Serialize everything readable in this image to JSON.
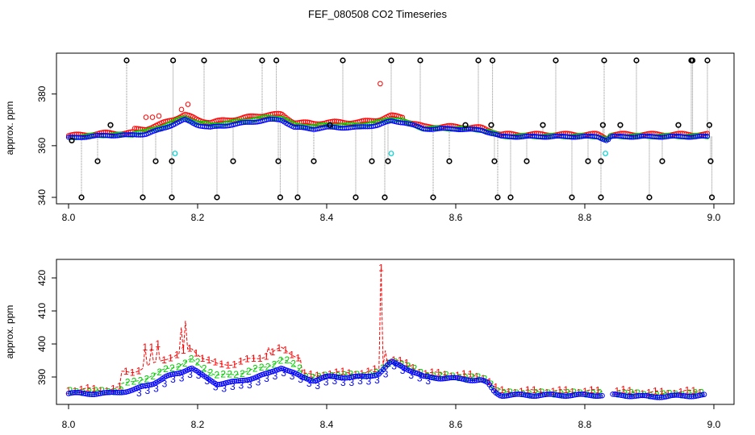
{
  "figure": {
    "title": "FEF_080508  CO2 Timeseries"
  },
  "colors": {
    "red": "#ff0000",
    "green": "#00cc00",
    "blue": "#0000ff",
    "black": "#000000",
    "cyan": "#00d0d0",
    "gray": "#888888"
  },
  "chart_data": [
    {
      "type": "scatter",
      "panel": "top",
      "ylabel": "approx. ppm",
      "xlim": [
        8.0,
        9.0
      ],
      "ylim": [
        336,
        397
      ],
      "x_ticks": [
        8.0,
        8.2,
        8.4,
        8.6,
        8.8,
        9.0
      ],
      "x_tick_labels": [
        "8.0",
        "8.2",
        "8.4",
        "8.6",
        "8.8",
        "9.0"
      ],
      "y_ticks": [
        340,
        360,
        380
      ],
      "y_tick_labels": [
        "340",
        "360",
        "380"
      ],
      "baseline_knots": {
        "x": [
          8.0,
          8.03,
          8.06,
          8.09,
          8.12,
          8.14,
          8.16,
          8.18,
          8.2,
          8.22,
          8.25,
          8.28,
          8.31,
          8.33,
          8.35,
          8.38,
          8.4,
          8.45,
          8.48,
          8.5,
          8.52,
          8.55,
          8.6,
          8.64,
          8.66,
          8.67,
          8.75,
          8.82,
          8.835,
          8.84,
          8.9,
          8.99
        ],
        "y": [
          363,
          363.5,
          364,
          364,
          364.5,
          366,
          368,
          370,
          368,
          367,
          368,
          369,
          370,
          370,
          367,
          366.5,
          367,
          367,
          368,
          369.5,
          369,
          366.5,
          366.5,
          366,
          364.5,
          363.5,
          363.5,
          363.5,
          362,
          363.5,
          363.5,
          363.5
        ]
      },
      "red_spikes": [
        {
          "x": 8.12,
          "y": 371
        },
        {
          "x": 8.13,
          "y": 371
        },
        {
          "x": 8.14,
          "y": 371.5
        },
        {
          "x": 8.175,
          "y": 374
        },
        {
          "x": 8.185,
          "y": 376
        },
        {
          "x": 8.483,
          "y": 384
        }
      ],
      "cyan_points": [
        {
          "x": 8.165,
          "y": 357
        },
        {
          "x": 8.5,
          "y": 357
        },
        {
          "x": 8.832,
          "y": 357
        }
      ],
      "black_outliers": [
        {
          "x": 8.005,
          "y": 362
        },
        {
          "x": 8.02,
          "y": 340
        },
        {
          "x": 8.045,
          "y": 354
        },
        {
          "x": 8.065,
          "y": 368
        },
        {
          "x": 8.09,
          "y": 393
        },
        {
          "x": 8.115,
          "y": 340
        },
        {
          "x": 8.135,
          "y": 354
        },
        {
          "x": 8.16,
          "y": 340
        },
        {
          "x": 8.16,
          "y": 354
        },
        {
          "x": 8.162,
          "y": 393
        },
        {
          "x": 8.21,
          "y": 393
        },
        {
          "x": 8.23,
          "y": 340
        },
        {
          "x": 8.255,
          "y": 354
        },
        {
          "x": 8.3,
          "y": 393
        },
        {
          "x": 8.322,
          "y": 393
        },
        {
          "x": 8.325,
          "y": 354
        },
        {
          "x": 8.328,
          "y": 340
        },
        {
          "x": 8.355,
          "y": 340
        },
        {
          "x": 8.38,
          "y": 354
        },
        {
          "x": 8.405,
          "y": 368
        },
        {
          "x": 8.425,
          "y": 393
        },
        {
          "x": 8.445,
          "y": 340
        },
        {
          "x": 8.47,
          "y": 354
        },
        {
          "x": 8.49,
          "y": 340
        },
        {
          "x": 8.495,
          "y": 354
        },
        {
          "x": 8.5,
          "y": 393
        },
        {
          "x": 8.545,
          "y": 393
        },
        {
          "x": 8.565,
          "y": 340
        },
        {
          "x": 8.59,
          "y": 354
        },
        {
          "x": 8.615,
          "y": 368
        },
        {
          "x": 8.635,
          "y": 393
        },
        {
          "x": 8.655,
          "y": 368
        },
        {
          "x": 8.657,
          "y": 393
        },
        {
          "x": 8.66,
          "y": 354
        },
        {
          "x": 8.665,
          "y": 340
        },
        {
          "x": 8.685,
          "y": 340
        },
        {
          "x": 8.71,
          "y": 354
        },
        {
          "x": 8.735,
          "y": 368
        },
        {
          "x": 8.755,
          "y": 393
        },
        {
          "x": 8.78,
          "y": 340
        },
        {
          "x": 8.805,
          "y": 354
        },
        {
          "x": 8.825,
          "y": 340
        },
        {
          "x": 8.825,
          "y": 354
        },
        {
          "x": 8.828,
          "y": 368
        },
        {
          "x": 8.83,
          "y": 393
        },
        {
          "x": 8.855,
          "y": 368
        },
        {
          "x": 8.88,
          "y": 393
        },
        {
          "x": 8.9,
          "y": 340
        },
        {
          "x": 8.92,
          "y": 354
        },
        {
          "x": 8.945,
          "y": 368
        },
        {
          "x": 8.965,
          "y": 393
        },
        {
          "x": 8.967,
          "y": 393
        },
        {
          "x": 8.99,
          "y": 393
        },
        {
          "x": 8.993,
          "y": 368
        },
        {
          "x": 8.995,
          "y": 354
        },
        {
          "x": 8.997,
          "y": 340
        }
      ]
    },
    {
      "type": "line",
      "panel": "bottom",
      "ylabel": "approx. ppm",
      "xlim": [
        8.0,
        9.0
      ],
      "ylim": [
        381,
        426
      ],
      "x_ticks": [
        8.0,
        8.2,
        8.4,
        8.6,
        8.8,
        9.0
      ],
      "x_tick_labels": [
        "8.0",
        "8.2",
        "8.4",
        "8.6",
        "8.8",
        "9.0"
      ],
      "y_ticks": [
        390,
        400,
        410,
        420
      ],
      "y_tick_labels": [
        "390",
        "400",
        "410",
        "420"
      ],
      "baseline_knots": {
        "x": [
          8.0,
          8.06,
          8.1,
          8.13,
          8.15,
          8.17,
          8.19,
          8.21,
          8.23,
          8.26,
          8.29,
          8.31,
          8.33,
          8.34,
          8.36,
          8.38,
          8.4,
          8.46,
          8.48,
          8.5,
          8.52,
          8.55,
          8.6,
          8.64,
          8.65,
          8.66,
          8.67,
          8.75,
          8.83,
          8.84,
          8.86,
          8.9,
          8.99
        ],
        "y": [
          385,
          385,
          386,
          388,
          390,
          391,
          393,
          390,
          388,
          388.5,
          390,
          391,
          393,
          392,
          390,
          389,
          390,
          390,
          391,
          394.5,
          393,
          390,
          389.5,
          389,
          388,
          385.5,
          384.5,
          384.5,
          384.5,
          384.5,
          384.5,
          384,
          384.5
        ]
      },
      "red_peaks": [
        {
          "x": 8.12,
          "y": 399
        },
        {
          "x": 8.13,
          "y": 399
        },
        {
          "x": 8.14,
          "y": 400
        },
        {
          "x": 8.175,
          "y": 405
        },
        {
          "x": 8.18,
          "y": 407
        },
        {
          "x": 8.31,
          "y": 399
        },
        {
          "x": 8.483,
          "y": 423
        },
        {
          "x": 8.49,
          "y": 398
        }
      ],
      "series_labels": [
        "1",
        "2",
        "3"
      ]
    }
  ]
}
